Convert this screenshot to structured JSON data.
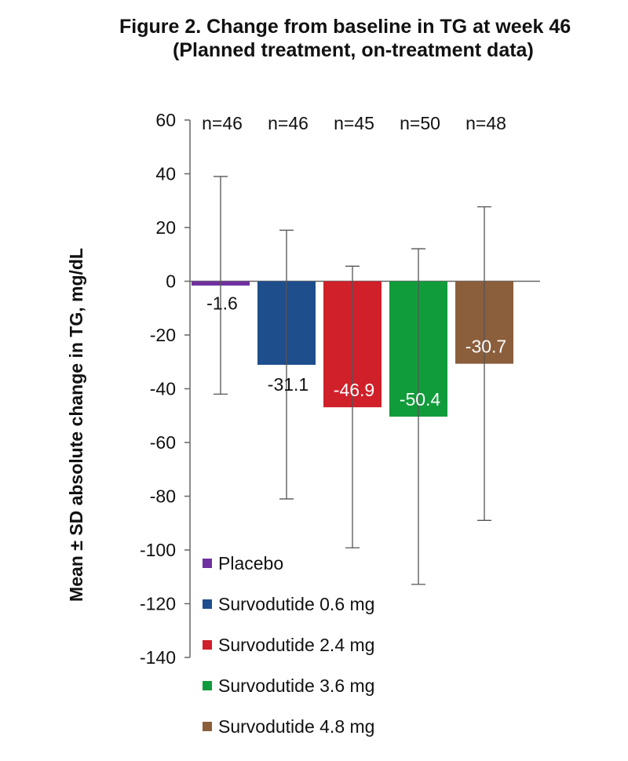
{
  "title": {
    "line1": "Figure 2. Change from baseline in TG at week 46",
    "line2": "(Planned treatment, on-treatment data)"
  },
  "chart_data": {
    "type": "bar",
    "title": "Figure 2. Change from baseline in TG at week 46 (Planned treatment, on-treatment data)",
    "xlabel": "",
    "ylabel": "Mean ± SD absolute change in TG, mg/dL",
    "ylim": [
      -140,
      60
    ],
    "yticks": [
      60,
      40,
      20,
      0,
      -20,
      -40,
      -60,
      -80,
      -100,
      -120,
      -140
    ],
    "grid": false,
    "legend_position": "bottom-left",
    "categories": [
      "Placebo",
      "Survodutide 0.6 mg",
      "Survodutide 2.4 mg",
      "Survodutide 3.6 mg",
      "Survodutide 4.8 mg"
    ],
    "values": [
      -1.6,
      -31.1,
      -46.9,
      -50.4,
      -30.7
    ],
    "value_labels": [
      "-1.6",
      "-31.1",
      "-46.9",
      "-50.4",
      "-30.7"
    ],
    "error_upper": [
      39,
      19,
      5.6,
      12.1,
      27.7
    ],
    "error_lower": [
      -42,
      -81,
      -99.2,
      -112.8,
      -89
    ],
    "n_labels": [
      "n=46",
      "n=46",
      "n=45",
      "n=50",
      "n=48"
    ],
    "colors": [
      "#7030A0",
      "#1F4E8C",
      "#D0202A",
      "#119C3B",
      "#8B5E3C"
    ],
    "value_label_colors": [
      "#111111",
      "#111111",
      "#ffffff",
      "#ffffff",
      "#ffffff"
    ]
  }
}
